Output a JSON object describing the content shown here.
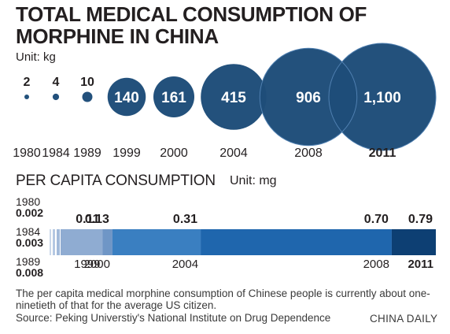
{
  "header": {
    "title": "TOTAL MEDICAL CONSUMPTION OF MORPHINE IN CHINA",
    "unit": "Unit: kg"
  },
  "chart_data": [
    {
      "type": "bubble",
      "title": "TOTAL MEDICAL CONSUMPTION OF MORPHINE IN CHINA",
      "unit": "Unit: kg",
      "categories": [
        "1980",
        "1984",
        "1989",
        "1999",
        "2000",
        "2004",
        "2008",
        "2011"
      ],
      "values": [
        2,
        4,
        10,
        140,
        161,
        415,
        906,
        1100
      ],
      "value_labels": [
        "2",
        "4",
        "10",
        "140",
        "161",
        "415",
        "906",
        "1,100"
      ],
      "bold_category": "2011",
      "color": "#1f4e79"
    },
    {
      "type": "bar",
      "title": "PER CAPITA CONSUMPTION",
      "unit": "Unit: mg",
      "categories": [
        "1980",
        "1984",
        "1989",
        "1999",
        "2000",
        "2004",
        "2008",
        "2011"
      ],
      "values": [
        0.002,
        0.003,
        0.008,
        0.11,
        0.13,
        0.31,
        0.7,
        0.79
      ],
      "value_labels": [
        "0.002",
        "0.003",
        "0.008",
        "0.11",
        "0.13",
        "0.31",
        "0.70",
        "0.79"
      ],
      "bold_category": "2011",
      "colors": [
        "#c9d7ea",
        "#b5c8e2",
        "#a2bada",
        "#8facd2",
        "#6f96c6",
        "#3a7fc1",
        "#1f66ad",
        "#0d3f73"
      ]
    }
  ],
  "footer": {
    "note": "The per capita medical morphine consumption of Chinese people is currently about one-ninetieth of that for the average US citizen.",
    "source": "Source: Peking Universtiy's National Institute on Drug Dependence",
    "credit": "CHINA DAILY"
  }
}
